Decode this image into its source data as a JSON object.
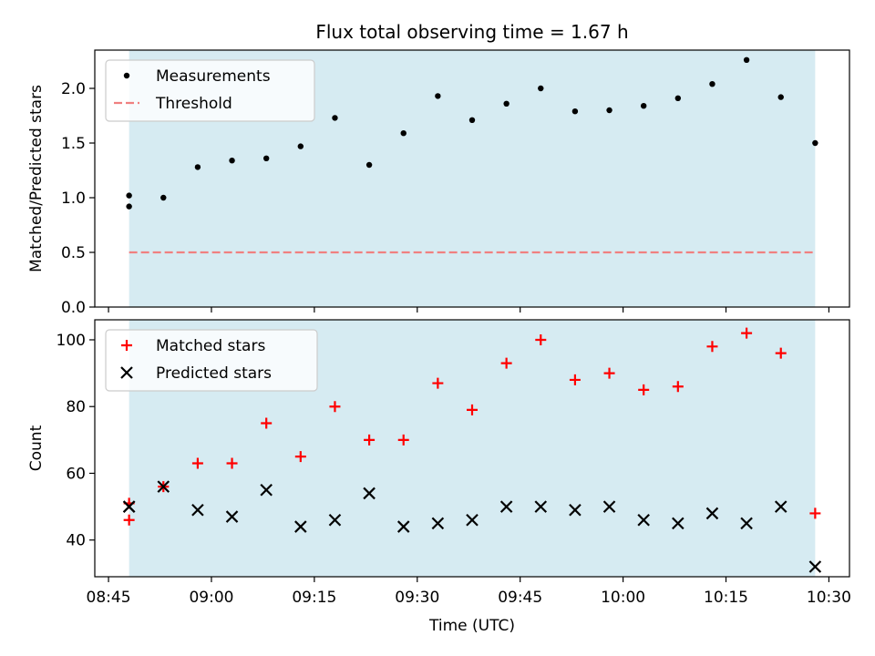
{
  "title": "Flux total observing time = 1.67 h",
  "chart_data": [
    {
      "type": "scatter",
      "ylabel": "Matched/Predicted stars",
      "ylim": [
        0,
        2.35
      ],
      "yticks": [
        0,
        0.5,
        1.0,
        1.5,
        2.0
      ],
      "yticklabels": [
        "0.0",
        "0.5",
        "1.0",
        "1.5",
        "2.0"
      ],
      "xlim": [
        "08:43",
        "10:33"
      ],
      "shaded_range": [
        "08:48",
        "10:28"
      ],
      "shade_color": "#add8e6",
      "legend_position": "upper left",
      "series": [
        {
          "name": "Measurements",
          "marker": "dot",
          "color": "#000000",
          "x": [
            "08:48",
            "08:48",
            "08:53",
            "08:58",
            "09:03",
            "09:08",
            "09:13",
            "09:18",
            "09:23",
            "09:28",
            "09:33",
            "09:38",
            "09:43",
            "09:48",
            "09:53",
            "09:58",
            "10:03",
            "10:08",
            "10:13",
            "10:18",
            "10:23",
            "10:28"
          ],
          "y": [
            1.02,
            0.92,
            1.0,
            1.28,
            1.34,
            1.36,
            1.47,
            1.73,
            1.3,
            1.59,
            1.93,
            1.71,
            1.86,
            2.0,
            1.79,
            1.8,
            1.84,
            1.91,
            2.04,
            2.26,
            1.92,
            1.5
          ]
        },
        {
          "name": "Threshold",
          "line_style": "dashed",
          "color": "#f08080",
          "x": [
            "08:48",
            "10:28"
          ],
          "y": [
            0.5,
            0.5
          ]
        }
      ]
    },
    {
      "type": "scatter",
      "xlabel": "Time (UTC)",
      "ylabel": "Count",
      "ylim": [
        29,
        106
      ],
      "yticks": [
        40,
        60,
        80,
        100
      ],
      "yticklabels": [
        "40",
        "60",
        "80",
        "100"
      ],
      "xlim": [
        "08:43",
        "10:33"
      ],
      "xticks": [
        "08:45",
        "09:00",
        "09:15",
        "09:30",
        "09:45",
        "10:00",
        "10:15",
        "10:30"
      ],
      "xticklabels": [
        "08:45",
        "09:00",
        "09:15",
        "09:30",
        "09:45",
        "10:00",
        "10:15",
        "10:30"
      ],
      "shaded_range": [
        "08:48",
        "10:28"
      ],
      "shade_color": "#add8e6",
      "legend_position": "upper left",
      "series": [
        {
          "name": "Matched stars",
          "marker": "plus",
          "color": "#ff0000",
          "x": [
            "08:48",
            "08:48",
            "08:53",
            "08:58",
            "09:03",
            "09:08",
            "09:13",
            "09:18",
            "09:23",
            "09:28",
            "09:33",
            "09:38",
            "09:43",
            "09:48",
            "09:53",
            "09:58",
            "10:03",
            "10:08",
            "10:13",
            "10:18",
            "10:23",
            "10:28"
          ],
          "y": [
            51,
            46,
            56,
            63,
            63,
            75,
            65,
            80,
            70,
            70,
            87,
            79,
            93,
            100,
            88,
            90,
            85,
            86,
            98,
            102,
            96,
            48
          ]
        },
        {
          "name": "Predicted stars",
          "marker": "x",
          "color": "#000000",
          "x": [
            "08:48",
            "08:48",
            "08:53",
            "08:58",
            "09:03",
            "09:08",
            "09:13",
            "09:18",
            "09:23",
            "09:28",
            "09:33",
            "09:38",
            "09:43",
            "09:48",
            "09:53",
            "09:58",
            "10:03",
            "10:08",
            "10:13",
            "10:18",
            "10:23",
            "10:28"
          ],
          "y": [
            50,
            50,
            56,
            49,
            47,
            55,
            44,
            46,
            54,
            44,
            45,
            46,
            50,
            50,
            49,
            50,
            46,
            45,
            48,
            45,
            50,
            32
          ]
        }
      ]
    }
  ]
}
